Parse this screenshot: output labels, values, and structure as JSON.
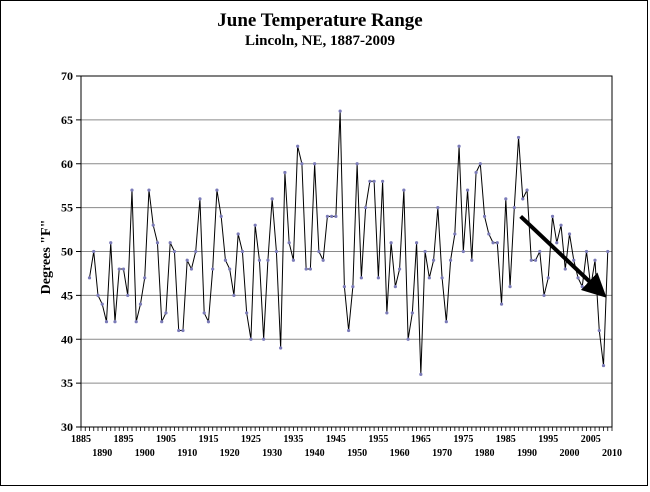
{
  "chart_data": {
    "type": "line",
    "title": "June Temperature Range",
    "subtitle": "Lincoln, NE, 1887-2009",
    "ylabel": "Degrees \"F\"",
    "xlabel": "",
    "xlim": [
      1885,
      2010
    ],
    "ylim": [
      30,
      70
    ],
    "y_ticks": [
      30,
      35,
      40,
      45,
      50,
      55,
      60,
      65,
      70
    ],
    "x_ticks_top": [
      1885,
      1895,
      1905,
      1915,
      1925,
      1935,
      1945,
      1955,
      1965,
      1975,
      1985,
      1995,
      2005
    ],
    "x_ticks_bottom": [
      1890,
      1900,
      1910,
      1920,
      1930,
      1940,
      1950,
      1960,
      1970,
      1980,
      1990,
      2000,
      2010
    ],
    "grid": "horizontal",
    "legend": "none",
    "series": [
      {
        "x": [
          1887,
          1888,
          1889,
          1890,
          1891,
          1892,
          1893,
          1894,
          1895,
          1896,
          1897,
          1898,
          1899,
          1900,
          1901,
          1902,
          1903,
          1904,
          1905,
          1906,
          1907,
          1908,
          1909,
          1910,
          1911,
          1912,
          1913,
          1914,
          1915,
          1916,
          1917,
          1918,
          1919,
          1920,
          1921,
          1922,
          1923,
          1924,
          1925,
          1926,
          1927,
          1928,
          1929,
          1930,
          1931,
          1932,
          1933,
          1934,
          1935,
          1936,
          1937,
          1938,
          1939,
          1940,
          1941,
          1942,
          1943,
          1944,
          1945,
          1946,
          1947,
          1948,
          1949,
          1950,
          1951,
          1952,
          1953,
          1954,
          1955,
          1956,
          1957,
          1958,
          1959,
          1960,
          1961,
          1962,
          1963,
          1964,
          1965,
          1966,
          1967,
          1968,
          1969,
          1970,
          1971,
          1972,
          1973,
          1974,
          1975,
          1976,
          1977,
          1978,
          1979,
          1980,
          1981,
          1982,
          1983,
          1984,
          1985,
          1986,
          1987,
          1988,
          1989,
          1990,
          1991,
          1992,
          1993,
          1994,
          1995,
          1996,
          1997,
          1998,
          1999,
          2000,
          2001,
          2002,
          2003,
          2004,
          2005,
          2006,
          2007,
          2008,
          2009
        ],
        "values": [
          47,
          50,
          45,
          44,
          42,
          51,
          42,
          48,
          48,
          45,
          57,
          42,
          44,
          47,
          57,
          53,
          51,
          42,
          43,
          51,
          50,
          41,
          41,
          49,
          48,
          50,
          56,
          43,
          42,
          48,
          57,
          54,
          49,
          48,
          45,
          52,
          50,
          43,
          40,
          53,
          49,
          40,
          49,
          56,
          50,
          39,
          59,
          51,
          49,
          62,
          60,
          48,
          48,
          60,
          50,
          49,
          54,
          54,
          54,
          66,
          46,
          41,
          46,
          60,
          47,
          55,
          58,
          58,
          47,
          58,
          43,
          51,
          46,
          48,
          57,
          40,
          43,
          51,
          36,
          50,
          47,
          49,
          55,
          47,
          42,
          49,
          52,
          62,
          50,
          57,
          49,
          59,
          60,
          54,
          52,
          51,
          51,
          44,
          56,
          46,
          55,
          63,
          56,
          57,
          49,
          49,
          50,
          45,
          47,
          54,
          51,
          53,
          48,
          52,
          49,
          47,
          46,
          50,
          46,
          49,
          41,
          37,
          50
        ],
        "color": "#000000",
        "marker_color": "#7b7bb8"
      }
    ],
    "annotations": [
      {
        "type": "arrow",
        "from": [
          1988.5,
          54
        ],
        "to": [
          2007.5,
          45.3
        ],
        "color": "#000000"
      }
    ]
  }
}
